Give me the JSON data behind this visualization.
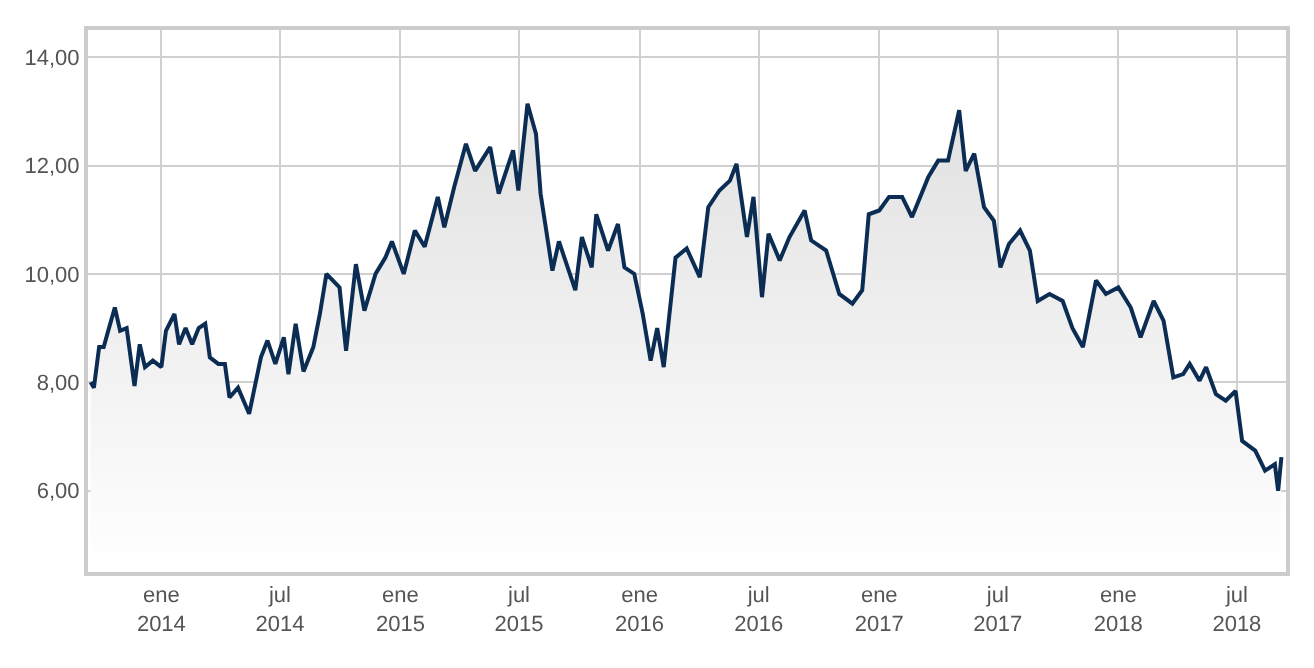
{
  "chart_data": {
    "type": "area",
    "color": "#0b2d54",
    "x": [
      "2013-09-15",
      "2013-09-20",
      "2013-09-28",
      "2013-10-05",
      "2013-10-13",
      "2013-10-22",
      "2013-10-30",
      "2013-11-09",
      "2013-11-21",
      "2013-11-29",
      "2013-12-07",
      "2013-12-19",
      "2014-01-01",
      "2014-01-08",
      "2014-01-21",
      "2014-01-28",
      "2014-02-07",
      "2014-02-17",
      "2014-02-27",
      "2014-03-09",
      "2014-03-16",
      "2014-03-29",
      "2014-04-08",
      "2014-04-15",
      "2014-04-28",
      "2014-05-15",
      "2014-06-02",
      "2014-06-12",
      "2014-06-24",
      "2014-07-07",
      "2014-07-14",
      "2014-07-25",
      "2014-08-06",
      "2014-08-21",
      "2014-08-31",
      "2014-09-10",
      "2014-09-30",
      "2014-10-10",
      "2014-10-25",
      "2014-11-07",
      "2014-11-24",
      "2014-12-09",
      "2014-12-19",
      "2015-01-06",
      "2015-01-23",
      "2015-02-07",
      "2015-02-27",
      "2015-03-09",
      "2015-03-24",
      "2015-04-11",
      "2015-04-25",
      "2015-05-18",
      "2015-05-31",
      "2015-06-22",
      "2015-06-30",
      "2015-07-14",
      "2015-07-27",
      "2015-08-03",
      "2015-08-21",
      "2015-08-31",
      "2015-09-25",
      "2015-10-05",
      "2015-10-20",
      "2015-10-27",
      "2015-11-14",
      "2015-11-29",
      "2015-12-09",
      "2015-12-24",
      "2016-01-06",
      "2016-01-18",
      "2016-01-28",
      "2016-02-07",
      "2016-02-25",
      "2016-03-13",
      "2016-04-02",
      "2016-04-15",
      "2016-05-02",
      "2016-05-18",
      "2016-05-28",
      "2016-06-13",
      "2016-06-23",
      "2016-07-06",
      "2016-07-16",
      "2016-08-02",
      "2016-08-17",
      "2016-09-09",
      "2016-09-19",
      "2016-10-12",
      "2016-11-01",
      "2016-11-21",
      "2016-12-06",
      "2016-12-16",
      "2017-01-01",
      "2017-01-16",
      "2017-02-05",
      "2017-02-20",
      "2017-03-17",
      "2017-04-01",
      "2017-04-16",
      "2017-05-03",
      "2017-05-13",
      "2017-05-26",
      "2017-06-10",
      "2017-06-25",
      "2017-07-05",
      "2017-07-18",
      "2017-08-04",
      "2017-08-19",
      "2017-08-31",
      "2017-09-18",
      "2017-10-08",
      "2017-10-23",
      "2017-11-08",
      "2017-11-28",
      "2017-12-13",
      "2018-01-01",
      "2018-01-20",
      "2018-02-04",
      "2018-02-24",
      "2018-03-11",
      "2018-03-26",
      "2018-04-10",
      "2018-04-20",
      "2018-05-05",
      "2018-05-15",
      "2018-05-30",
      "2018-06-14",
      "2018-06-29",
      "2018-07-09",
      "2018-07-29",
      "2018-08-13",
      "2018-08-28",
      "2018-09-02",
      "2018-09-07"
    ],
    "values": [
      8.0,
      7.9,
      8.65,
      8.65,
      9.0,
      9.38,
      8.95,
      9.0,
      7.93,
      8.7,
      8.28,
      8.4,
      8.28,
      8.95,
      9.26,
      8.7,
      9.0,
      8.7,
      9.0,
      9.08,
      8.46,
      8.34,
      8.34,
      7.72,
      7.9,
      7.42,
      8.46,
      8.77,
      8.34,
      8.83,
      8.15,
      9.08,
      8.2,
      8.65,
      9.26,
      10.0,
      9.75,
      8.58,
      10.18,
      9.32,
      10.0,
      10.3,
      10.6,
      10.0,
      10.8,
      10.5,
      11.42,
      10.86,
      11.6,
      12.4,
      11.9,
      12.34,
      11.48,
      12.28,
      11.54,
      13.14,
      12.58,
      11.48,
      10.06,
      10.6,
      9.7,
      10.68,
      10.12,
      11.1,
      10.43,
      10.92,
      10.12,
      10.0,
      9.26,
      8.4,
      9.0,
      8.28,
      10.3,
      10.47,
      9.94,
      11.23,
      11.54,
      11.72,
      12.03,
      10.68,
      11.42,
      9.57,
      10.74,
      10.25,
      10.68,
      11.17,
      10.62,
      10.43,
      9.63,
      9.45,
      9.7,
      11.1,
      11.17,
      11.42,
      11.42,
      11.05,
      11.79,
      12.09,
      12.09,
      13.02,
      11.9,
      12.22,
      11.23,
      10.98,
      10.12,
      10.55,
      10.8,
      10.43,
      9.5,
      9.63,
      9.5,
      9.0,
      8.65,
      9.88,
      9.63,
      9.75,
      9.38,
      8.83,
      9.5,
      9.14,
      8.09,
      8.15,
      8.34,
      8.03,
      8.28,
      7.78,
      7.66,
      7.84,
      6.92,
      6.74,
      6.37,
      6.49,
      6.0,
      6.62
    ],
    "xlim": [
      "2013-09-11",
      "2018-09-14"
    ],
    "xticks": [
      {
        "value": "2014-01-01",
        "label": "ene\n2014"
      },
      {
        "value": "2014-07-01",
        "label": "jul\n2014"
      },
      {
        "value": "2015-01-01",
        "label": "ene\n2015"
      },
      {
        "value": "2015-07-01",
        "label": "jul\n2015"
      },
      {
        "value": "2016-01-01",
        "label": "ene\n2016"
      },
      {
        "value": "2016-07-01",
        "label": "jul\n2016"
      },
      {
        "value": "2017-01-01",
        "label": "ene\n2017"
      },
      {
        "value": "2017-07-01",
        "label": "jul\n2017"
      },
      {
        "value": "2018-01-01",
        "label": "ene\n2018"
      },
      {
        "value": "2018-07-01",
        "label": "jul\n2018"
      }
    ],
    "ylim": [
      4.5,
      14.5
    ],
    "yticks": [
      {
        "value": 6,
        "label": "6,00"
      },
      {
        "value": 8,
        "label": "8,00"
      },
      {
        "value": 10,
        "label": "10,00"
      },
      {
        "value": 12,
        "label": "12,00"
      },
      {
        "value": 14,
        "label": "14,00"
      }
    ],
    "grid": true,
    "marker": "none",
    "line_style": "solid"
  }
}
